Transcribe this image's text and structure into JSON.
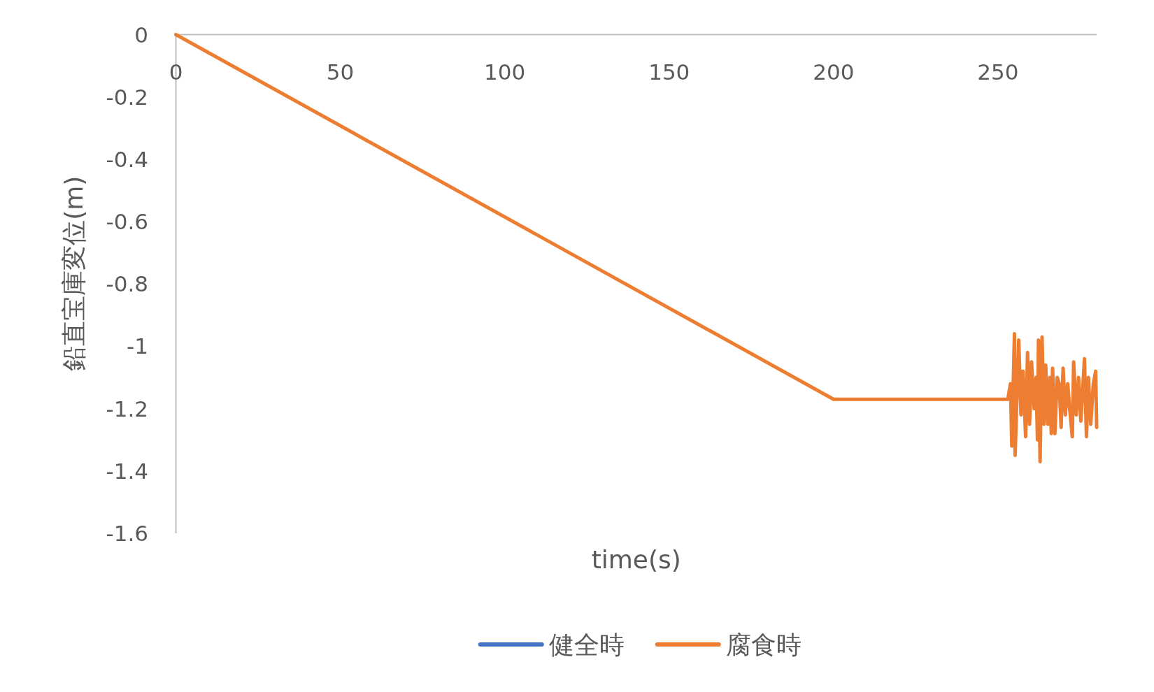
{
  "chart_data": {
    "type": "line",
    "xlabel": "time(s)",
    "ylabel": "鉛直宝庫変位(m)",
    "x": [
      0,
      200,
      253,
      253.8,
      254.2,
      255,
      255.2,
      256.3,
      257,
      257.6,
      258.4,
      259,
      259.6,
      260.2,
      261,
      261.6,
      262,
      262.3,
      262.8,
      263.4,
      264,
      264.5,
      265.2,
      265.8,
      266.2,
      266.6,
      267.3,
      268,
      268.6,
      269.2,
      269.8,
      270.5,
      271.2,
      271.8,
      272.6,
      273,
      273.8,
      274.5,
      275.2,
      276.3,
      276.9,
      277.5,
      278.2,
      279,
      279.7,
      280
    ],
    "series": [
      {
        "name": "健全時",
        "color": "#4472c4",
        "values": [
          null,
          null,
          null,
          null,
          null,
          null,
          null,
          null,
          null,
          null,
          null,
          null,
          null,
          null,
          null,
          null,
          null,
          null,
          null,
          null,
          null,
          null,
          null,
          null,
          null,
          null,
          null,
          null,
          null,
          null,
          null,
          null,
          null,
          null,
          null,
          null,
          null,
          null,
          null,
          null,
          null,
          null,
          null,
          null,
          null,
          null
        ]
      },
      {
        "name": "腐食時",
        "color": "#ed7d31",
        "values": [
          0,
          -1.17,
          -1.17,
          -1.12,
          -1.32,
          -0.96,
          -1.35,
          -0.98,
          -1.22,
          -1.08,
          -1.29,
          -1.02,
          -1.25,
          -1.05,
          -1.2,
          -1.1,
          -1.3,
          -0.98,
          -1.37,
          -0.97,
          -1.25,
          -1.06,
          -1.25,
          -1.1,
          -1.28,
          -1.07,
          -1.28,
          -1.1,
          -1.12,
          -1.26,
          -1.07,
          -1.22,
          -1.12,
          -1.2,
          -1.29,
          -1.05,
          -1.22,
          -1.1,
          -1.24,
          -1.04,
          -1.29,
          -1.1,
          -1.25,
          -1.12,
          -1.08,
          -1.26
        ]
      }
    ],
    "xlim": [
      0,
      280
    ],
    "ylim": [
      -1.6,
      0
    ],
    "xticks": [
      0,
      50,
      100,
      150,
      200,
      250
    ],
    "yticks": [
      0,
      -0.2,
      -0.4,
      -0.6,
      -0.8,
      -1,
      -1.2,
      -1.4,
      -1.6
    ],
    "legend": "bottom"
  }
}
